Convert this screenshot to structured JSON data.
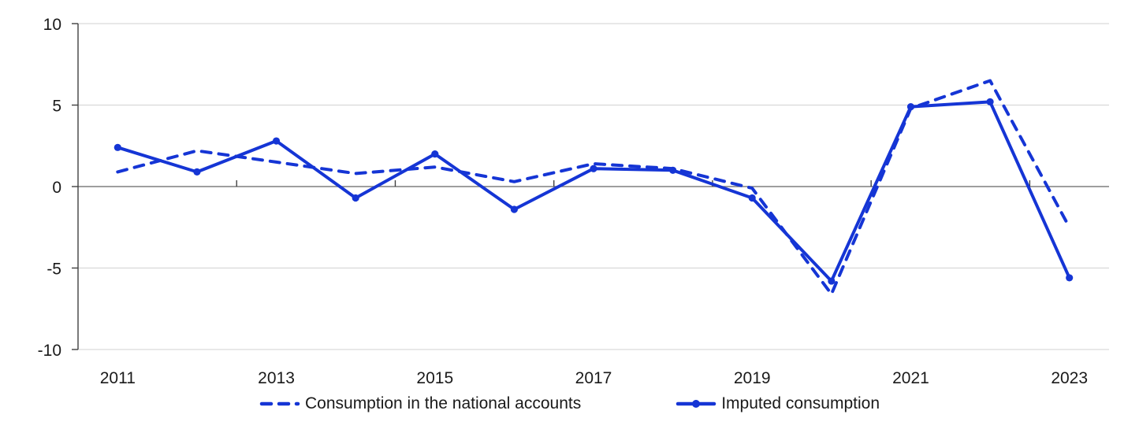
{
  "chart_data": {
    "type": "line",
    "title": "",
    "xlabel": "",
    "ylabel": "",
    "categories": [
      2011,
      2012,
      2013,
      2014,
      2015,
      2016,
      2017,
      2018,
      2019,
      2020,
      2021,
      2022,
      2023
    ],
    "series": [
      {
        "name": "Consumption in the national accounts",
        "line_style": "dashed",
        "markers": false,
        "values": [
          0.9,
          2.2,
          1.5,
          0.8,
          1.2,
          0.3,
          1.4,
          1.1,
          -0.1,
          -6.6,
          4.8,
          6.5,
          -2.5
        ]
      },
      {
        "name": "Imputed consumption",
        "line_style": "solid",
        "markers": true,
        "values": [
          2.4,
          0.9,
          2.8,
          -0.7,
          2.0,
          -1.4,
          1.1,
          1.0,
          -0.7,
          -5.8,
          4.9,
          5.2,
          -5.6
        ]
      }
    ],
    "ylim": [
      -10,
      10
    ],
    "yticks": [
      -10,
      -5,
      0,
      5,
      10
    ],
    "x_label_every": 2,
    "grid": "horizontal",
    "legend_position": "bottom",
    "colors": {
      "line": "#1535d5",
      "grid": "#d9d9d9",
      "zero_line": "#7f7f7f",
      "axis": "#404040",
      "text": "#1a1a1a"
    }
  }
}
